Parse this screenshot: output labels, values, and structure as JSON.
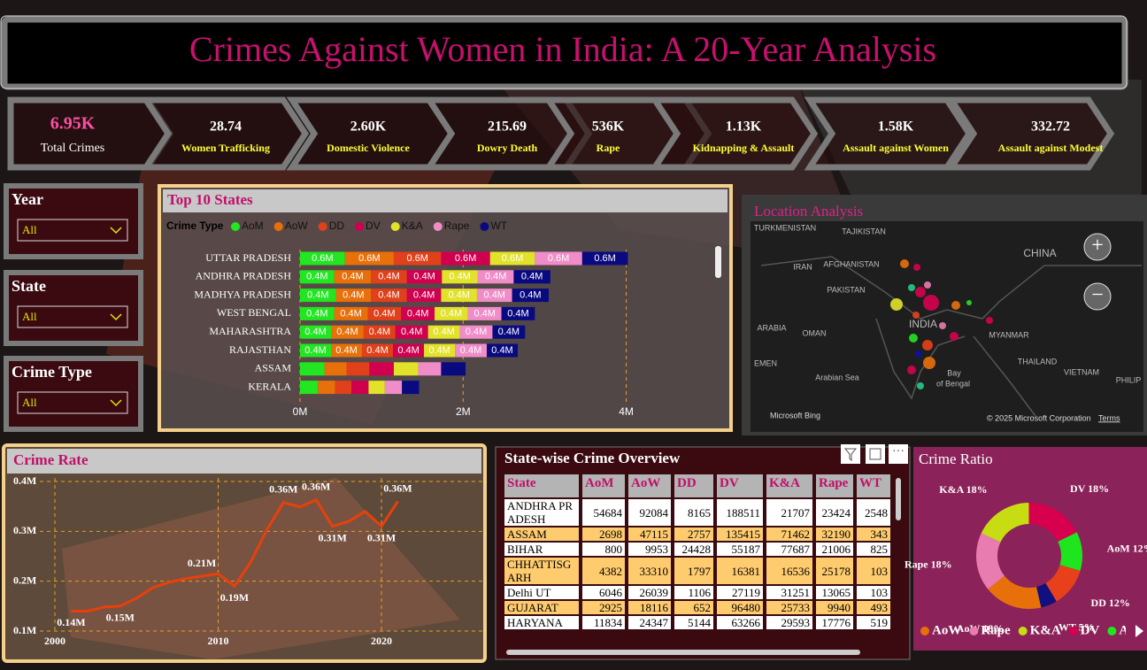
{
  "header": {
    "title": "Crimes Against Women in India: A 20-Year Analysis"
  },
  "kpis": [
    {
      "value": "6.95K",
      "label": "Total Crimes"
    },
    {
      "value": "28.74",
      "label": "Women Trafficking"
    },
    {
      "value": "2.60K",
      "label": "Domestic Violence"
    },
    {
      "value": "215.69",
      "label": "Dowry Death"
    },
    {
      "value": "536K",
      "label": "Rape"
    },
    {
      "value": "1.13K",
      "label": "Kidnapping & Assault"
    },
    {
      "value": "1.58K",
      "label": "Assault against Women"
    },
    {
      "value": "332.72",
      "label": "Assault against Modest"
    }
  ],
  "filters": [
    {
      "label": "Year",
      "value": "All"
    },
    {
      "label": "State",
      "value": "All"
    },
    {
      "label": "Crime Type",
      "value": "All"
    }
  ],
  "chart_data": [
    {
      "type": "bar",
      "orientation": "horizontal",
      "stacked": true,
      "title": "Top 10 States",
      "legend_title": "Crime Type",
      "categories": [
        "UTTAR PRADESH",
        "ANDHRA PRADESH",
        "MADHYA PRADESH",
        "WEST BENGAL",
        "MAHARASHTRA",
        "RAJASTHAN",
        "ASSAM",
        "KERALA"
      ],
      "series": [
        {
          "name": "AoM",
          "color": "#22e622",
          "values": [
            0.55,
            0.42,
            0.44,
            0.42,
            0.38,
            0.38,
            0.3,
            0.22
          ],
          "value_labels": [
            "0.6M",
            "0.4M",
            "0.4M",
            "0.4M",
            "0.4M",
            "0.4M",
            null,
            null
          ]
        },
        {
          "name": "AoW",
          "color": "#e8700a",
          "values": [
            0.6,
            0.45,
            0.43,
            0.41,
            0.4,
            0.38,
            0.27,
            0.21
          ],
          "value_labels": [
            "0.6M",
            "0.4M",
            "0.4M",
            "0.4M",
            "0.4M",
            "0.4M",
            null,
            null
          ]
        },
        {
          "name": "DD",
          "color": "#e0401a",
          "values": [
            0.58,
            0.44,
            0.44,
            0.41,
            0.39,
            0.38,
            0.28,
            0.2
          ],
          "value_labels": [
            "0.6M",
            "0.4M",
            "0.4M",
            "0.4M",
            "0.4M",
            "0.4M",
            null,
            null
          ]
        },
        {
          "name": "DV",
          "color": "#d0004f",
          "values": [
            0.6,
            0.43,
            0.42,
            0.41,
            0.4,
            0.38,
            0.3,
            0.21
          ],
          "value_labels": [
            "0.6M",
            "0.4M",
            "0.4M",
            "0.4M",
            "0.4M",
            "0.4M",
            null,
            null
          ]
        },
        {
          "name": "K&A",
          "color": "#e2e22a",
          "values": [
            0.55,
            0.44,
            0.44,
            0.41,
            0.39,
            0.38,
            0.3,
            0.2
          ],
          "value_labels": [
            "0.6M",
            "0.4M",
            "0.4M",
            "0.4M",
            "0.4M",
            "0.4M",
            null,
            null
          ]
        },
        {
          "name": "Rape",
          "color": "#f08cc8",
          "values": [
            0.58,
            0.44,
            0.43,
            0.41,
            0.4,
            0.39,
            0.28,
            0.21
          ],
          "value_labels": [
            "0.6M",
            "0.4M",
            "0.4M",
            "0.4M",
            "0.4M",
            "0.4M",
            null,
            null
          ]
        },
        {
          "name": "WT",
          "color": "#0a0a80",
          "values": [
            0.56,
            0.45,
            0.45,
            0.41,
            0.4,
            0.38,
            0.3,
            0.21
          ],
          "value_labels": [
            "0.6M",
            "0.4M",
            "0.4M",
            "0.4M",
            "0.4M",
            "0.4M",
            null,
            null
          ]
        }
      ],
      "xlim": [
        0,
        4.2
      ],
      "xticks": [
        {
          "value": 0,
          "label": "0M"
        },
        {
          "value": 2,
          "label": "2M"
        },
        {
          "value": 4,
          "label": "4M"
        }
      ],
      "grid": true
    },
    {
      "type": "line",
      "title": "Crime Rate",
      "color": "#e8400a",
      "x": [
        2001,
        2002,
        2003,
        2004,
        2005,
        2006,
        2007,
        2008,
        2009,
        2010,
        2011,
        2012,
        2013,
        2014,
        2015,
        2016,
        2017,
        2018,
        2019,
        2020,
        2021
      ],
      "values": [
        0.14,
        0.14,
        0.148,
        0.15,
        0.166,
        0.187,
        0.198,
        0.205,
        0.21,
        0.215,
        0.19,
        0.239,
        0.304,
        0.358,
        0.349,
        0.363,
        0.31,
        0.32,
        0.34,
        0.31,
        0.36
      ],
      "value_labels": [
        "0.14M",
        null,
        null,
        "0.15M",
        null,
        null,
        null,
        null,
        "0.21M",
        null,
        "0.19M",
        null,
        null,
        "0.36M",
        null,
        "0.36M",
        "0.31M",
        null,
        null,
        "0.31M",
        "0.36M"
      ],
      "xlim": [
        1999,
        2025
      ],
      "xticks": [
        2000,
        2010,
        2020
      ],
      "ylim": [
        0.1,
        0.4
      ],
      "yticks": [
        {
          "value": 0.1,
          "label": "0.1M"
        },
        {
          "value": 0.2,
          "label": "0.2M"
        },
        {
          "value": 0.3,
          "label": "0.3M"
        },
        {
          "value": 0.4,
          "label": "0.4M"
        }
      ],
      "grid": true
    },
    {
      "type": "pie",
      "donut": true,
      "title": "Crime Ratio",
      "categories": [
        "AoW",
        "Rape",
        "K&A",
        "DV",
        "AoM",
        "DD",
        "WT"
      ],
      "values": [
        18,
        18,
        18,
        18,
        12,
        12,
        5
      ],
      "value_labels": [
        "18%",
        "18%",
        "18%",
        "18%",
        "12%",
        "12%",
        "5%"
      ],
      "colors": [
        "#e8700a",
        "#e87bb0",
        "#c8dc14",
        "#d6004f",
        "#1ee61e",
        "#e8401a",
        "#101080"
      ]
    }
  ],
  "table": {
    "title": "State-wise Crime Overview",
    "columns": [
      "State",
      "AoM",
      "AoW",
      "DD",
      "DV",
      "K&A",
      "Rape",
      "WT"
    ],
    "rows": [
      [
        "ANDHRA PRADESH",
        54684,
        92084,
        8165,
        188511,
        21707,
        23424,
        2548
      ],
      [
        "ASSAM",
        2698,
        47115,
        2757,
        135415,
        71462,
        32190,
        343
      ],
      [
        "BIHAR",
        800,
        9953,
        24428,
        55187,
        77687,
        21006,
        825
      ],
      [
        "CHHATTISGARH",
        4382,
        33310,
        1797,
        16381,
        16536,
        25178,
        103
      ],
      [
        "Delhi UT",
        6046,
        26039,
        1106,
        27119,
        31251,
        13065,
        103
      ],
      [
        "GUJARAT",
        2925,
        18116,
        652,
        96480,
        25733,
        9940,
        493
      ],
      [
        "HARYANA",
        11834,
        24347,
        5144,
        63266,
        29593,
        17776,
        519
      ]
    ]
  },
  "map": {
    "title": "Location Analysis",
    "labels": [
      "TURKMENISTAN",
      "TAJIKISTAN",
      "CHINA",
      "IRAN",
      "AFGHANISTAN",
      "PAKISTAN",
      "ARABIA",
      "OMAN",
      "INDIA",
      "MYANMAR",
      "THAILAND",
      "VIETNAM",
      "PHILIP",
      "EMEN",
      "Arabian Sea",
      "Bay",
      "of Bengal"
    ],
    "provider": "Microsoft Bing",
    "copyright": "© 2025 Microsoft Corporation",
    "terms": "Terms"
  }
}
